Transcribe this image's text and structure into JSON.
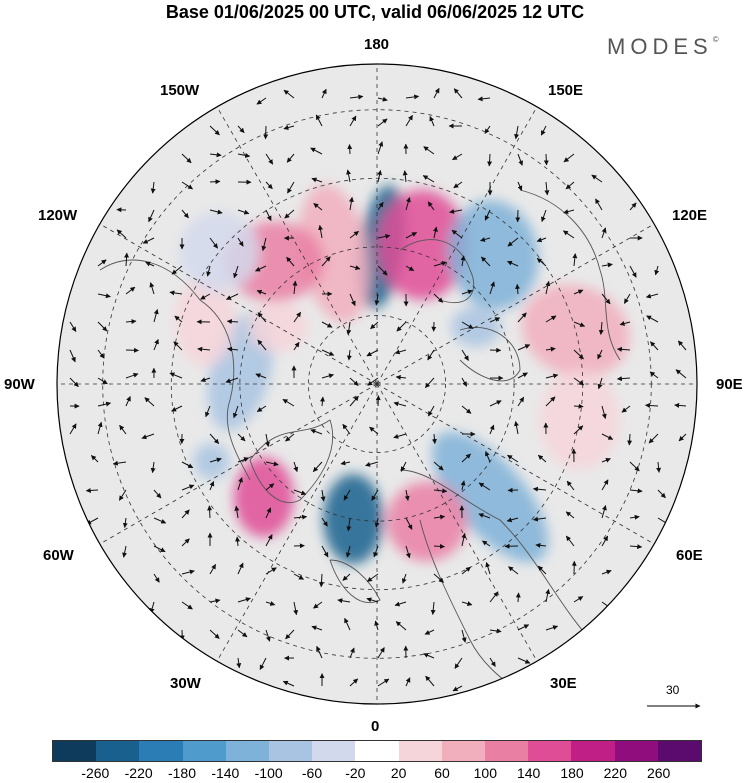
{
  "title": "Base 01/06/2025 00 UTC, valid 06/06/2025 12 UTC",
  "brand": "MODES",
  "brand_mark": "©",
  "longitude_labels": {
    "top": "180",
    "bottom": "0",
    "left": "90W",
    "right": "90E",
    "upper_left_1": "150W",
    "upper_left_2": "120W",
    "lower_left_1": "60W",
    "lower_left_2": "30W",
    "upper_right_1": "150E",
    "upper_right_2": "120E",
    "lower_right_1": "60E",
    "lower_right_2": "30E"
  },
  "reference_vector_label": "30",
  "colorbar": {
    "colors": [
      "#0e3a5c",
      "#19608e",
      "#2a7db5",
      "#4f9bcc",
      "#7fb2d8",
      "#a9c4e2",
      "#d3d9ec",
      "#ffffff",
      "#f6d5da",
      "#f1aebd",
      "#ea7fa4",
      "#e04d97",
      "#c01f86",
      "#8f0d7c",
      "#5b0a6e"
    ],
    "ticks": [
      "-260",
      "-220",
      "-180",
      "-140",
      "-100",
      "-60",
      "-20",
      "20",
      "60",
      "100",
      "140",
      "180",
      "220",
      "260"
    ]
  },
  "anomalies": [
    {
      "lat": 60,
      "lon": 178,
      "value": -260,
      "color": "#19608e",
      "rx": 22,
      "ry": 62,
      "rot": 8
    },
    {
      "lat": 60,
      "lon": -162,
      "value": 100,
      "color": "#f1aebd",
      "rx": 34,
      "ry": 70,
      "rot": -10
    },
    {
      "lat": 58,
      "lon": 162,
      "value": 180,
      "color": "#e04d97",
      "rx": 45,
      "ry": 55,
      "rot": 0
    },
    {
      "lat": 55,
      "lon": -140,
      "value": 180,
      "color": "#ea7fa4",
      "rx": 50,
      "ry": 40,
      "rot": 0
    },
    {
      "lat": 52,
      "lon": 138,
      "value": -140,
      "color": "#7fb2d8",
      "rx": 45,
      "ry": 55,
      "rot": -10
    },
    {
      "lat": 45,
      "lon": 105,
      "value": 140,
      "color": "#f1aebd",
      "rx": 55,
      "ry": 45,
      "rot": 20
    },
    {
      "lat": 45,
      "lon": 80,
      "value": 60,
      "color": "#f6d5da",
      "rx": 40,
      "ry": 50,
      "rot": 0
    },
    {
      "lat": 55,
      "lon": 45,
      "value": -140,
      "color": "#7fb2d8",
      "rx": 35,
      "ry": 80,
      "rot": -40
    },
    {
      "lat": 58,
      "lon": 20,
      "value": 180,
      "color": "#ea7fa4",
      "rx": 40,
      "ry": 40,
      "rot": 0
    },
    {
      "lat": 60,
      "lon": -10,
      "value": -260,
      "color": "#19608e",
      "rx": 30,
      "ry": 45,
      "rot": 0
    },
    {
      "lat": 55,
      "lon": -45,
      "value": 180,
      "color": "#e04d97",
      "rx": 30,
      "ry": 40,
      "rot": 0
    },
    {
      "lat": 50,
      "lon": -65,
      "value": -100,
      "color": "#a9c4e2",
      "rx": 18,
      "ry": 18,
      "rot": 0
    },
    {
      "lat": 60,
      "lon": -95,
      "value": -100,
      "color": "#a9c4e2",
      "rx": 30,
      "ry": 60,
      "rot": 15
    },
    {
      "lat": 50,
      "lon": -110,
      "value": 60,
      "color": "#f6d5da",
      "rx": 30,
      "ry": 45,
      "rot": 0
    },
    {
      "lat": 65,
      "lon": -120,
      "value": 60,
      "color": "#f6d5da",
      "rx": 30,
      "ry": 25,
      "rot": 0
    },
    {
      "lat": 65,
      "lon": 120,
      "value": -100,
      "color": "#a9c4e2",
      "rx": 25,
      "ry": 20,
      "rot": 0
    },
    {
      "lat": 45,
      "lon": -130,
      "value": -60,
      "color": "#d3d9ec",
      "rx": 40,
      "ry": 40,
      "rot": 0
    }
  ]
}
